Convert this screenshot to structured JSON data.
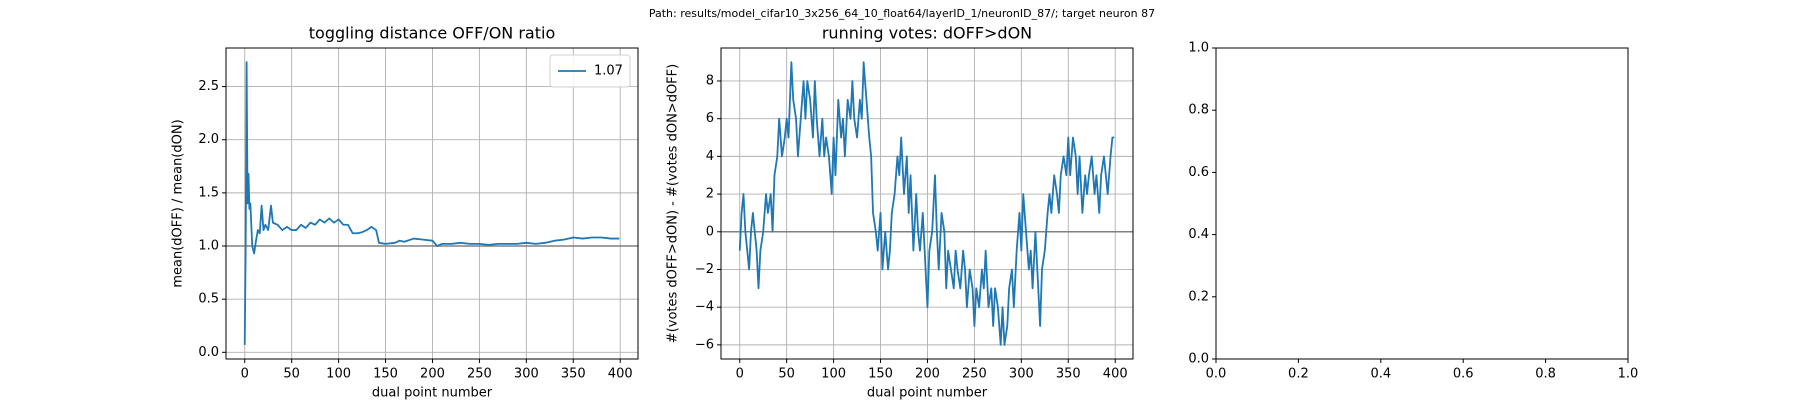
{
  "title": "Path: results/model_cifar10_3x256_64_10_float64/layerID_1/neuronID_87/; target neuron 87",
  "chart_data": [
    {
      "type": "line",
      "title": "toggling distance OFF/ON ratio",
      "xlabel": "dual point number",
      "ylabel": "mean(dOFF) / mean(dON)",
      "x": [
        0,
        1,
        2,
        3,
        4,
        5,
        6,
        8,
        10,
        12,
        14,
        16,
        18,
        20,
        22,
        25,
        28,
        30,
        35,
        40,
        45,
        50,
        55,
        60,
        65,
        70,
        75,
        80,
        85,
        90,
        95,
        100,
        105,
        110,
        115,
        120,
        125,
        130,
        135,
        140,
        143,
        150,
        160,
        165,
        170,
        180,
        190,
        200,
        205,
        210,
        220,
        230,
        240,
        250,
        260,
        270,
        280,
        290,
        300,
        310,
        320,
        330,
        340,
        350,
        360,
        370,
        380,
        390,
        399
      ],
      "series": [
        {
          "name": "1.07",
          "color": "#1f77b4",
          "values": [
            0.07,
            1.0,
            2.73,
            1.4,
            1.68,
            1.35,
            1.4,
            1.0,
            0.93,
            1.05,
            1.15,
            1.12,
            1.38,
            1.15,
            1.2,
            1.15,
            1.38,
            1.22,
            1.2,
            1.15,
            1.18,
            1.15,
            1.15,
            1.2,
            1.17,
            1.22,
            1.2,
            1.25,
            1.22,
            1.26,
            1.22,
            1.25,
            1.2,
            1.2,
            1.12,
            1.12,
            1.13,
            1.15,
            1.18,
            1.15,
            1.03,
            1.02,
            1.03,
            1.05,
            1.04,
            1.07,
            1.06,
            1.05,
            1.0,
            1.02,
            1.02,
            1.03,
            1.02,
            1.02,
            1.01,
            1.02,
            1.02,
            1.02,
            1.03,
            1.02,
            1.03,
            1.05,
            1.06,
            1.08,
            1.07,
            1.08,
            1.08,
            1.07,
            1.07
          ]
        }
      ],
      "hline": 1,
      "hline_color": "#808080",
      "xlim": [
        -19.95,
        418.95
      ],
      "xticks": [
        0,
        50,
        100,
        150,
        200,
        250,
        300,
        350,
        400
      ],
      "ylim": [
        -0.063,
        2.863
      ],
      "yticks": [
        {
          "value": 0,
          "label": "0.0"
        },
        {
          "value": 0.5,
          "label": "0.5"
        },
        {
          "value": 1,
          "label": "1.0"
        },
        {
          "value": 1.5,
          "label": "1.5"
        },
        {
          "value": 2,
          "label": "2.0"
        },
        {
          "value": 2.5,
          "label": "2.5"
        }
      ],
      "grid": true,
      "legend": "upper-right"
    },
    {
      "type": "line",
      "title": "running votes: dOFF>dON",
      "xlabel": "dual point number",
      "ylabel": "#(votes dOFF>dON) - #(votes dON>dOFF)",
      "x": [
        0,
        2,
        4,
        6,
        8,
        10,
        12,
        14,
        16,
        18,
        20,
        22,
        25,
        28,
        30,
        33,
        35,
        37,
        40,
        42,
        45,
        48,
        50,
        52,
        55,
        57,
        60,
        62,
        65,
        68,
        70,
        72,
        75,
        78,
        80,
        82,
        85,
        88,
        90,
        92,
        95,
        98,
        100,
        102,
        105,
        108,
        110,
        112,
        115,
        118,
        120,
        122,
        125,
        128,
        130,
        132,
        135,
        138,
        140,
        142,
        145,
        147,
        150,
        152,
        155,
        158,
        160,
        162,
        165,
        168,
        170,
        172,
        175,
        178,
        180,
        182,
        185,
        188,
        190,
        192,
        195,
        198,
        200,
        202,
        205,
        208,
        210,
        212,
        215,
        218,
        220,
        222,
        225,
        228,
        230,
        232,
        235,
        238,
        240,
        242,
        245,
        248,
        250,
        252,
        255,
        258,
        260,
        262,
        265,
        268,
        270,
        272,
        275,
        278,
        280,
        282,
        285,
        287,
        290,
        292,
        295,
        298,
        300,
        302,
        305,
        308,
        310,
        312,
        315,
        318,
        320,
        322,
        325,
        328,
        330,
        332,
        335,
        338,
        340,
        342,
        345,
        348,
        350,
        352,
        355,
        358,
        360,
        362,
        365,
        368,
        370,
        372,
        375,
        378,
        380,
        383,
        385,
        388,
        390,
        392,
        395,
        397,
        399
      ],
      "series": [
        {
          "color": "#1f77b4",
          "values": [
            -1,
            1,
            2,
            0,
            -1,
            -2,
            0,
            1,
            0,
            -1,
            -3,
            -1,
            0,
            2,
            1,
            2,
            0,
            3,
            4,
            6,
            4,
            5,
            6,
            5,
            9,
            7,
            6,
            4,
            6,
            8,
            6,
            8,
            7,
            5,
            8,
            6,
            4,
            6,
            4,
            5,
            4,
            2,
            5,
            3,
            7,
            5,
            6,
            4,
            7,
            6,
            8,
            6,
            5,
            7,
            6,
            9,
            7,
            5,
            4,
            1,
            0,
            -1,
            1,
            -2,
            0,
            -2,
            -1,
            1,
            2,
            4,
            3,
            5,
            2,
            4,
            1,
            3,
            -1,
            2,
            0,
            -1,
            1,
            -2,
            -4,
            -1,
            0,
            3,
            0,
            -2,
            1,
            0,
            -3,
            -1,
            -2,
            -3,
            -1,
            -2,
            -3,
            -1,
            -2,
            -4,
            -2,
            -3,
            -5,
            -3,
            -4,
            -2,
            -3,
            -1,
            -4,
            -3,
            -5,
            -3,
            -4,
            -6,
            -4,
            -6,
            -5,
            -3,
            -2,
            -4,
            -1,
            1,
            -1,
            2,
            0,
            -2,
            -1,
            -3,
            0,
            -3,
            -5,
            -2,
            -1,
            1,
            2,
            1,
            3,
            2,
            1,
            3,
            4,
            3,
            5,
            3,
            5,
            4,
            2,
            4,
            1,
            3,
            2,
            3,
            4,
            2,
            3,
            1,
            3,
            4,
            3,
            2,
            4,
            5,
            5
          ]
        }
      ],
      "hline": 0,
      "hline_color": "#808080",
      "xlim": [
        -19.95,
        418.95
      ],
      "xticks": [
        0,
        50,
        100,
        150,
        200,
        250,
        300,
        350,
        400
      ],
      "ylim": [
        -6.75,
        9.75
      ],
      "yticks": [
        {
          "value": -6,
          "label": "−6"
        },
        {
          "value": -4,
          "label": "−4"
        },
        {
          "value": -2,
          "label": "−2"
        },
        0,
        2,
        4,
        6,
        8
      ],
      "grid": true
    },
    {
      "type": "line",
      "xlim": [
        0,
        1
      ],
      "xticks": [
        {
          "value": 0,
          "label": "0.0"
        },
        {
          "value": 0.2,
          "label": "0.2"
        },
        {
          "value": 0.4,
          "label": "0.4"
        },
        {
          "value": 0.6,
          "label": "0.6"
        },
        {
          "value": 0.8,
          "label": "0.8"
        },
        {
          "value": 1,
          "label": "1.0"
        }
      ],
      "ylim": [
        0,
        1
      ],
      "yticks": [
        {
          "value": 0,
          "label": "0.0"
        },
        {
          "value": 0.2,
          "label": "0.2"
        },
        {
          "value": 0.4,
          "label": "0.4"
        },
        {
          "value": 0.6,
          "label": "0.6"
        },
        {
          "value": 0.8,
          "label": "0.8"
        },
        {
          "value": 1,
          "label": "1.0"
        }
      ],
      "grid": false
    }
  ]
}
